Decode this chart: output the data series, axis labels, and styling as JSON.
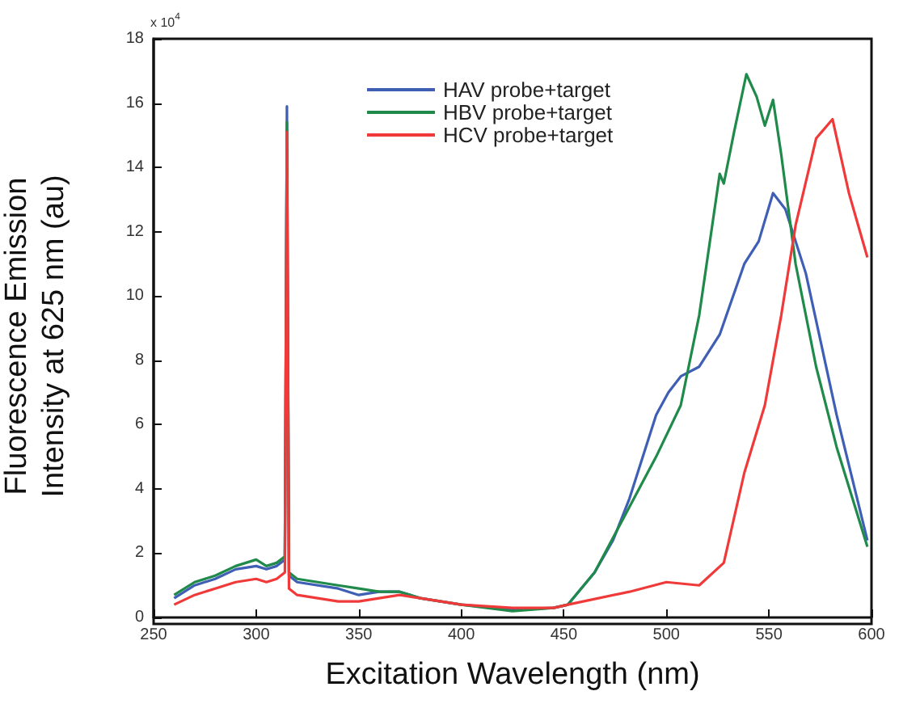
{
  "chart_data": {
    "type": "line",
    "xlabel": "Excitation Wavelength (nm)",
    "ylabel": "Fluorescence Emission\nIntensity at 625 nm (au)",
    "annotations": [
      "x 10$^{4}$"
    ],
    "xlim": [
      250,
      600
    ],
    "xticks": [
      250,
      300,
      350,
      400,
      450,
      500,
      550,
      600
    ],
    "ylim": [
      0,
      18
    ],
    "yticks": [
      0,
      2,
      4,
      6,
      8,
      10,
      12,
      14,
      16,
      18
    ],
    "grid": false,
    "legend": "top",
    "marker": "none",
    "line_style": "solid",
    "series": [
      {
        "name": "HAV probe+target",
        "color": "#3f5fb5",
        "x": [
          260,
          270,
          280,
          290,
          300,
          305,
          310,
          314,
          315,
          316,
          320,
          340,
          350,
          360,
          370,
          380,
          400,
          425,
          445,
          452,
          465,
          474,
          482,
          495,
          501,
          507,
          516,
          526,
          538,
          545,
          552,
          558,
          568,
          583,
          598
        ],
        "values": [
          0.6,
          1.0,
          1.2,
          1.5,
          1.6,
          1.5,
          1.6,
          1.8,
          15.9,
          1.3,
          1.1,
          0.9,
          0.7,
          0.8,
          0.8,
          0.6,
          0.4,
          0.25,
          0.3,
          0.4,
          1.4,
          2.4,
          3.7,
          6.3,
          7.0,
          7.5,
          7.8,
          8.8,
          11.0,
          11.7,
          13.2,
          12.7,
          10.7,
          6.3,
          2.4
        ]
      },
      {
        "name": "HBV probe+target",
        "color": "#1f8a4a",
        "x": [
          260,
          270,
          280,
          290,
          300,
          305,
          310,
          314,
          315,
          316,
          320,
          340,
          350,
          360,
          370,
          380,
          400,
          425,
          445,
          452,
          465,
          480,
          495,
          507,
          516,
          526,
          528,
          533,
          539,
          544,
          548,
          552,
          556,
          563,
          573,
          583,
          598
        ],
        "values": [
          0.7,
          1.1,
          1.3,
          1.6,
          1.8,
          1.6,
          1.7,
          1.9,
          15.4,
          1.4,
          1.2,
          1.0,
          0.9,
          0.8,
          0.8,
          0.6,
          0.4,
          0.2,
          0.3,
          0.4,
          1.4,
          3.2,
          5.0,
          6.6,
          9.4,
          13.8,
          13.5,
          15.1,
          16.9,
          16.2,
          15.3,
          16.1,
          14.4,
          11.0,
          7.8,
          5.3,
          2.2
        ]
      },
      {
        "name": "HCV probe+target",
        "color": "#f03a3a",
        "x": [
          260,
          270,
          280,
          290,
          300,
          305,
          310,
          314,
          315,
          316,
          320,
          340,
          350,
          360,
          370,
          380,
          400,
          425,
          445,
          452,
          482,
          500,
          516,
          528,
          538,
          548,
          556,
          563,
          573,
          581,
          589,
          598
        ],
        "values": [
          0.4,
          0.7,
          0.9,
          1.1,
          1.2,
          1.1,
          1.2,
          1.4,
          15.1,
          0.9,
          0.7,
          0.5,
          0.5,
          0.6,
          0.7,
          0.6,
          0.4,
          0.3,
          0.3,
          0.4,
          0.8,
          1.1,
          1.0,
          1.7,
          4.5,
          6.6,
          9.4,
          12.2,
          14.9,
          15.5,
          13.2,
          11.2
        ]
      }
    ]
  }
}
